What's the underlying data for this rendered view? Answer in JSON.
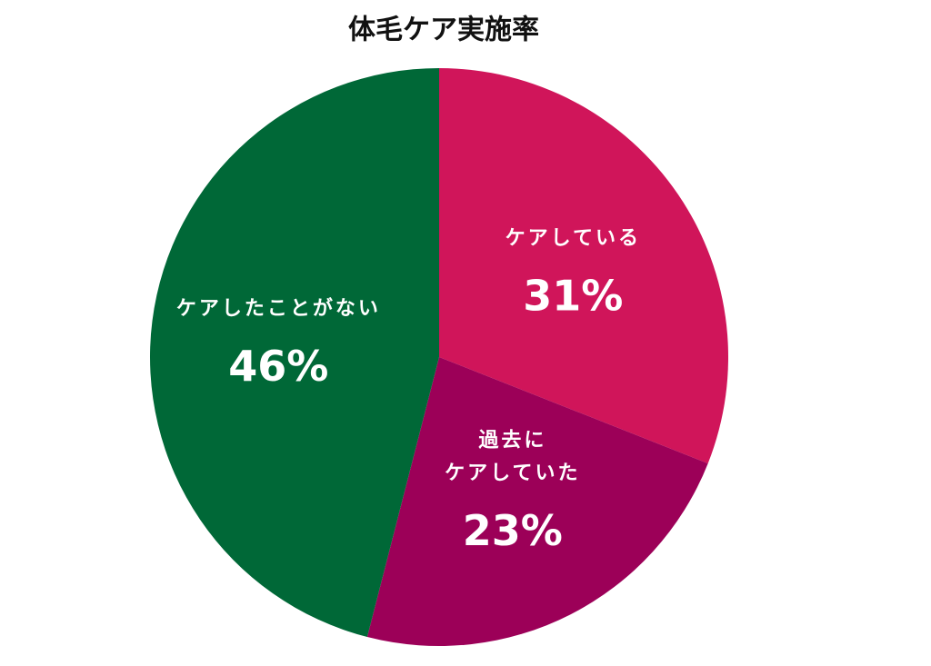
{
  "chart_data": {
    "type": "pie",
    "title": "体毛ケア実施率",
    "categories": [
      "ケアしている",
      "過去に\nケアしていた",
      "ケアしたことがない"
    ],
    "values": [
      31,
      23,
      46
    ],
    "value_labels": [
      "31%",
      "23%",
      "46%"
    ],
    "colors": [
      "#d0155a",
      "#9c0058",
      "#006837"
    ]
  }
}
